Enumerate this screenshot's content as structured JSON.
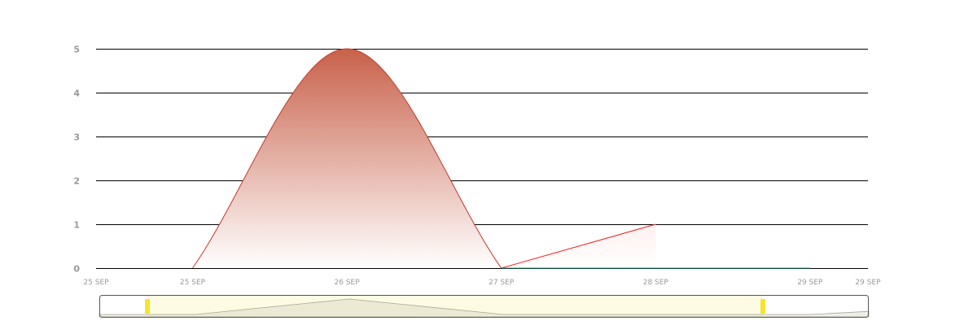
{
  "chart_data": {
    "type": "area",
    "ylim": [
      0,
      5
    ],
    "y_ticks": [
      "0",
      "1",
      "2",
      "3",
      "4",
      "5"
    ],
    "x_tick_labels": [
      "25 SEP",
      "25 SEP",
      "26 SEP",
      "27 SEP",
      "28 SEP",
      "29 SEP",
      "29 SEP"
    ],
    "x_tick_values": [
      "2023-09-25T00:00",
      "2023-09-25T15:00",
      "2023-09-26T15:00",
      "2023-09-27T15:00",
      "2023-09-28T15:00",
      "2023-09-29T15:00",
      "2023-09-30T00:00"
    ],
    "xlim": [
      "2023-09-25T00:00",
      "2023-09-30T00:00"
    ],
    "grid": true,
    "series": [
      {
        "color": "#c0392b",
        "gradient_top": "#c8614a",
        "gradient_bottom": "#ffffff",
        "filled": true,
        "points": [
          {
            "x": "2023-09-25T15:00",
            "y": 0
          },
          {
            "x": "2023-09-26T15:00",
            "y": 5
          },
          {
            "x": "2023-09-27T15:00",
            "y": 0
          }
        ]
      },
      {
        "color": "#ee2222",
        "filled": true,
        "gradient_top": "#fff0f0",
        "gradient_bottom": "#ffffff",
        "points": [
          {
            "x": "2023-09-27T15:00",
            "y": 0
          },
          {
            "x": "2023-09-28T15:00",
            "y": 1
          }
        ]
      },
      {
        "color": "#1a9c6b",
        "filled": false,
        "points": [
          {
            "x": "2023-09-27T15:00",
            "y": 0
          },
          {
            "x": "2023-09-29T15:00",
            "y": 0
          }
        ]
      }
    ],
    "navigator": {
      "outline_color": "#555555",
      "selection_fill": "#fdfbe4",
      "handle_color": "#f5e42a",
      "selection_range": [
        "2023-09-25T07:30",
        "2023-09-29T07:30"
      ],
      "series_points": [
        {
          "x": "2023-09-25T00:00",
          "y": 0
        },
        {
          "x": "2023-09-25T15:00",
          "y": 0
        },
        {
          "x": "2023-09-26T15:00",
          "y": 5
        },
        {
          "x": "2023-09-27T15:00",
          "y": 0
        },
        {
          "x": "2023-09-28T15:00",
          "y": 0
        },
        {
          "x": "2023-09-29T15:00",
          "y": 0
        },
        {
          "x": "2023-09-30T00:00",
          "y": 1
        }
      ]
    }
  }
}
